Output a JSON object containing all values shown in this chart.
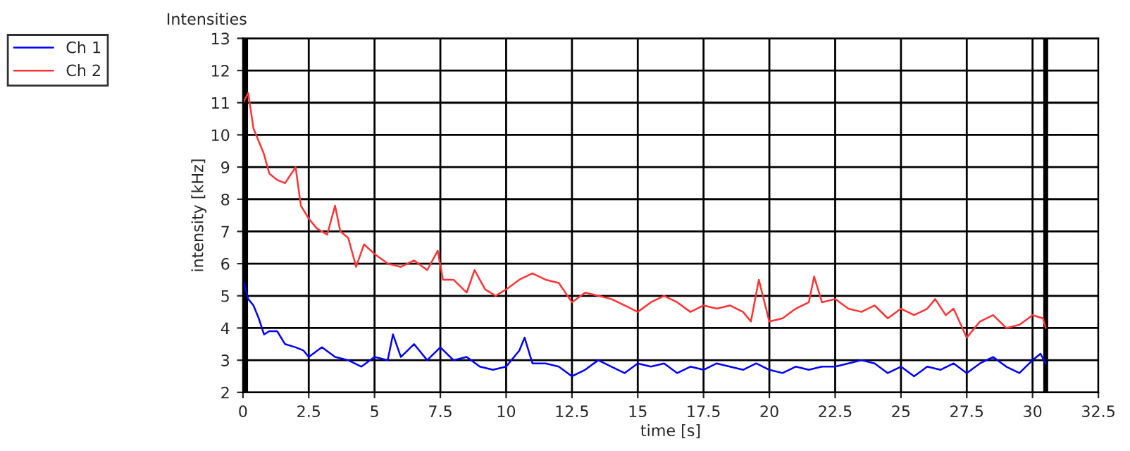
{
  "chart_data": {
    "type": "line",
    "title": "Intensities",
    "xlabel": "time [s]",
    "ylabel": "intensity [kHz]",
    "xlim": [
      0,
      32.5
    ],
    "xticks": [
      0,
      2.5,
      5,
      7.5,
      10,
      12.5,
      15,
      17.5,
      20,
      22.5,
      25,
      27.5,
      30,
      32.5
    ],
    "ylim": [
      2,
      13
    ],
    "yticks": [
      2,
      3,
      4,
      5,
      6,
      7,
      8,
      9,
      10,
      11,
      12,
      13
    ],
    "grid": true,
    "legend": "top left",
    "marker": "none",
    "line_style": "solid",
    "ref_lines": [
      {
        "axis": "x",
        "value": 0.1,
        "color": "#000000"
      },
      {
        "axis": "x",
        "value": 30.5,
        "color": "#000000"
      }
    ],
    "series": [
      {
        "name": "Ch 1",
        "color": "#0000ff",
        "x": [
          0,
          0.2,
          0.4,
          0.6,
          0.8,
          1.0,
          1.3,
          1.6,
          2.0,
          2.3,
          2.5,
          3.0,
          3.5,
          4.0,
          4.5,
          5.0,
          5.5,
          5.7,
          6.0,
          6.5,
          7.0,
          7.5,
          8.0,
          8.5,
          9.0,
          9.5,
          10,
          10.5,
          10.7,
          11,
          11.5,
          12,
          12.5,
          13,
          13.5,
          14,
          14.5,
          15,
          15.5,
          16,
          16.5,
          17,
          17.5,
          18,
          18.5,
          19,
          19.5,
          20,
          20.5,
          21,
          21.5,
          22,
          22.5,
          23,
          23.5,
          24,
          24.5,
          25,
          25.5,
          26,
          26.5,
          27,
          27.5,
          28,
          28.5,
          29,
          29.5,
          30,
          30.3,
          30.5
        ],
        "values": [
          5.5,
          4.9,
          4.7,
          4.3,
          3.8,
          3.9,
          3.9,
          3.5,
          3.4,
          3.3,
          3.1,
          3.4,
          3.1,
          3.0,
          2.8,
          3.1,
          3.0,
          3.8,
          3.1,
          3.5,
          3.0,
          3.4,
          3.0,
          3.1,
          2.8,
          2.7,
          2.8,
          3.3,
          3.7,
          2.9,
          2.9,
          2.8,
          2.5,
          2.7,
          3.0,
          2.8,
          2.6,
          2.9,
          2.8,
          2.9,
          2.6,
          2.8,
          2.7,
          2.9,
          2.8,
          2.7,
          2.9,
          2.7,
          2.6,
          2.8,
          2.7,
          2.8,
          2.8,
          2.9,
          3.0,
          2.9,
          2.6,
          2.8,
          2.5,
          2.8,
          2.7,
          2.9,
          2.6,
          2.9,
          3.1,
          2.8,
          2.6,
          3.0,
          3.2,
          2.9
        ]
      },
      {
        "name": "Ch 2",
        "color": "#ff3333",
        "x": [
          0,
          0.2,
          0.4,
          0.6,
          0.8,
          1.0,
          1.3,
          1.6,
          2.0,
          2.2,
          2.5,
          2.8,
          3.2,
          3.5,
          3.7,
          4.0,
          4.3,
          4.6,
          5.0,
          5.5,
          6.0,
          6.5,
          7.0,
          7.4,
          7.6,
          8.0,
          8.5,
          8.8,
          9.2,
          9.6,
          10,
          10.5,
          11,
          11.5,
          12,
          12.5,
          13,
          13.5,
          14,
          14.5,
          15,
          15.5,
          16,
          16.5,
          17,
          17.5,
          18,
          18.5,
          19,
          19.3,
          19.6,
          20,
          20.5,
          21,
          21.5,
          21.7,
          22,
          22.5,
          23,
          23.5,
          24,
          24.5,
          25,
          25.5,
          26,
          26.3,
          26.7,
          27,
          27.5,
          28,
          28.5,
          29,
          29.5,
          30,
          30.4,
          30.5
        ],
        "values": [
          11.0,
          11.3,
          10.2,
          9.8,
          9.4,
          8.8,
          8.6,
          8.5,
          9.0,
          7.8,
          7.4,
          7.1,
          6.9,
          7.8,
          7.0,
          6.8,
          5.9,
          6.6,
          6.3,
          6.0,
          5.9,
          6.1,
          5.8,
          6.4,
          5.5,
          5.5,
          5.1,
          5.8,
          5.2,
          5.0,
          5.2,
          5.5,
          5.7,
          5.5,
          5.4,
          4.8,
          5.1,
          5.0,
          4.9,
          4.7,
          4.5,
          4.8,
          5.0,
          4.8,
          4.5,
          4.7,
          4.6,
          4.7,
          4.5,
          4.2,
          5.5,
          4.2,
          4.3,
          4.6,
          4.8,
          5.6,
          4.8,
          4.9,
          4.6,
          4.5,
          4.7,
          4.3,
          4.6,
          4.4,
          4.6,
          4.9,
          4.4,
          4.6,
          3.7,
          4.2,
          4.4,
          4.0,
          4.1,
          4.4,
          4.3,
          4.0
        ]
      }
    ]
  }
}
